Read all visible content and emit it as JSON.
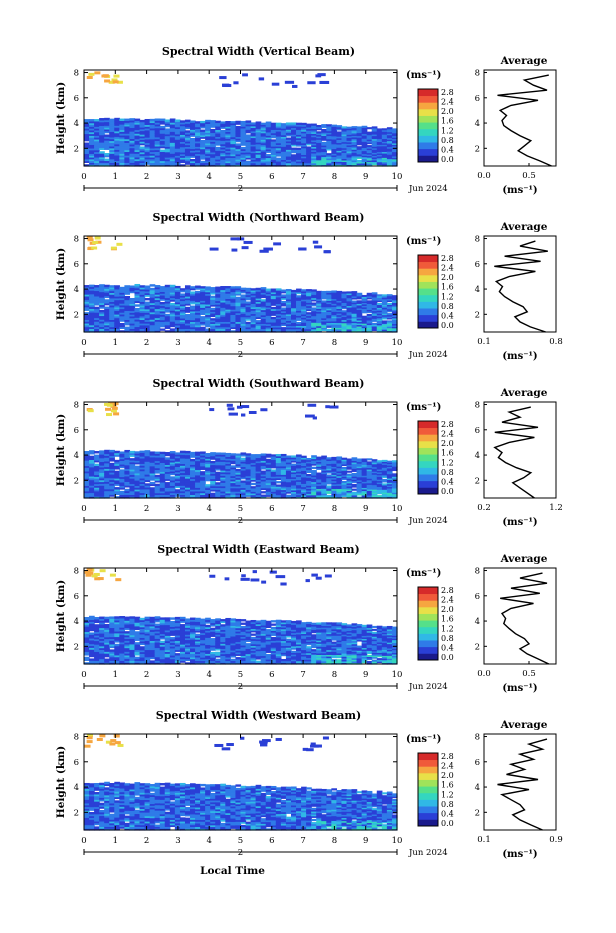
{
  "footer": {
    "xlabel": "Local Time"
  },
  "colorbar": {
    "unit": "(ms⁻¹)",
    "ticks": [
      "0.0",
      "0.4",
      "0.8",
      "1.2",
      "1.6",
      "2.0",
      "2.4",
      "2.8"
    ]
  },
  "colormap": [
    "#1a1a8c",
    "#2a3fd6",
    "#2f7be8",
    "#30b8e6",
    "#34d6c0",
    "#55e08a",
    "#a0e35a",
    "#e8e048",
    "#f6a640",
    "#f05a3a",
    "#d62a2a"
  ],
  "chart_data": [
    {
      "type": "heatmap",
      "title": "Spectral Width (Vertical Beam)",
      "ylabel": "Height (km)",
      "xlabel": "",
      "xlim": [
        0,
        10
      ],
      "ylim": [
        0.6,
        8.2
      ],
      "xticks": [
        "0",
        "1",
        "2",
        "3",
        "4",
        "5",
        "6",
        "7",
        "8",
        "9",
        "10"
      ],
      "yticks": [
        "2",
        "4",
        "6",
        "8"
      ],
      "date_day": "2",
      "date_label": "Jun 2024",
      "colorbar_range": [
        0.0,
        2.8
      ],
      "average": {
        "title": "Average",
        "xlabel": "(ms⁻¹)",
        "xticks": [
          "0.0",
          "0.5"
        ],
        "xlim": [
          0.0,
          0.8
        ],
        "height": [
          0.6,
          1.0,
          1.4,
          1.8,
          2.2,
          2.6,
          3.0,
          3.4,
          3.8,
          4.2,
          4.6,
          5.0,
          5.4,
          5.8,
          6.2,
          6.6,
          7.0,
          7.4,
          7.8
        ],
        "value": [
          0.75,
          0.62,
          0.48,
          0.38,
          0.45,
          0.52,
          0.4,
          0.3,
          0.22,
          0.2,
          0.25,
          0.18,
          0.3,
          0.6,
          0.15,
          0.7,
          0.55,
          0.45,
          0.72
        ]
      }
    },
    {
      "type": "heatmap",
      "title": "Spectral Width (Northward Beam)",
      "ylabel": "Height (km)",
      "xlabel": "",
      "xlim": [
        0,
        10
      ],
      "ylim": [
        0.6,
        8.2
      ],
      "xticks": [
        "0",
        "1",
        "2",
        "3",
        "4",
        "5",
        "6",
        "7",
        "8",
        "9",
        "10"
      ],
      "yticks": [
        "2",
        "4",
        "6",
        "8"
      ],
      "date_day": "2",
      "date_label": "Jun 2024",
      "colorbar_range": [
        0.0,
        2.8
      ],
      "average": {
        "title": "Average",
        "xlabel": "(ms⁻¹)",
        "xticks": [
          "0.1",
          "0.8"
        ],
        "xlim": [
          0.1,
          0.8
        ],
        "height": [
          0.6,
          1.0,
          1.4,
          1.8,
          2.2,
          2.6,
          3.0,
          3.4,
          3.8,
          4.2,
          4.6,
          5.0,
          5.4,
          5.8,
          6.2,
          6.6,
          7.0,
          7.4,
          7.8
        ],
        "value": [
          0.7,
          0.55,
          0.45,
          0.4,
          0.52,
          0.48,
          0.38,
          0.3,
          0.25,
          0.28,
          0.22,
          0.35,
          0.6,
          0.2,
          0.65,
          0.3,
          0.72,
          0.45,
          0.6
        ]
      }
    },
    {
      "type": "heatmap",
      "title": "Spectral Width (Southward Beam)",
      "ylabel": "Height (km)",
      "xlabel": "",
      "xlim": [
        0,
        10
      ],
      "ylim": [
        0.6,
        8.2
      ],
      "xticks": [
        "0",
        "1",
        "2",
        "3",
        "4",
        "5",
        "6",
        "7",
        "8",
        "9",
        "10"
      ],
      "yticks": [
        "2",
        "4",
        "6",
        "8"
      ],
      "date_day": "2",
      "date_label": "Jun 2024",
      "colorbar_range": [
        0.0,
        2.8
      ],
      "average": {
        "title": "Average",
        "xlabel": "(ms⁻¹)",
        "xticks": [
          "0.2",
          "1.2"
        ],
        "xlim": [
          0.2,
          1.2
        ],
        "height": [
          0.6,
          1.0,
          1.4,
          1.8,
          2.2,
          2.6,
          3.0,
          3.4,
          3.8,
          4.2,
          4.6,
          5.0,
          5.4,
          5.8,
          6.2,
          6.6,
          7.0,
          7.4,
          7.8
        ],
        "value": [
          0.9,
          0.8,
          0.7,
          0.6,
          0.75,
          0.85,
          0.65,
          0.5,
          0.4,
          0.45,
          0.35,
          0.55,
          0.9,
          0.35,
          0.95,
          0.45,
          0.7,
          0.55,
          0.85
        ]
      }
    },
    {
      "type": "heatmap",
      "title": "Spectral Width (Eastward Beam)",
      "ylabel": "Height (km)",
      "xlabel": "",
      "xlim": [
        0,
        10
      ],
      "ylim": [
        0.6,
        8.2
      ],
      "xticks": [
        "0",
        "1",
        "2",
        "3",
        "4",
        "5",
        "6",
        "7",
        "8",
        "9",
        "10"
      ],
      "yticks": [
        "2",
        "4",
        "6",
        "8"
      ],
      "date_day": "2",
      "date_label": "Jun 2024",
      "colorbar_range": [
        0.0,
        2.8
      ],
      "average": {
        "title": "Average",
        "xlabel": "(ms⁻¹)",
        "xticks": [
          "0.0",
          "0.5"
        ],
        "xlim": [
          0.0,
          0.8
        ],
        "height": [
          0.6,
          1.0,
          1.4,
          1.8,
          2.2,
          2.6,
          3.0,
          3.4,
          3.8,
          4.2,
          4.6,
          5.0,
          5.4,
          5.8,
          6.2,
          6.6,
          7.0,
          7.4,
          7.8
        ],
        "value": [
          0.72,
          0.6,
          0.48,
          0.4,
          0.5,
          0.45,
          0.35,
          0.28,
          0.22,
          0.24,
          0.2,
          0.3,
          0.55,
          0.18,
          0.62,
          0.3,
          0.7,
          0.4,
          0.65
        ]
      }
    },
    {
      "type": "heatmap",
      "title": "Spectral Width (Westward Beam)",
      "ylabel": "Height (km)",
      "xlabel": "Local Time",
      "xlim": [
        0,
        10
      ],
      "ylim": [
        0.6,
        8.2
      ],
      "xticks": [
        "0",
        "1",
        "2",
        "3",
        "4",
        "5",
        "6",
        "7",
        "8",
        "9",
        "10"
      ],
      "yticks": [
        "2",
        "4",
        "6",
        "8"
      ],
      "date_day": "2",
      "date_label": "Jun 2024",
      "colorbar_range": [
        0.0,
        2.8
      ],
      "average": {
        "title": "Average",
        "xlabel": "(ms⁻¹)",
        "xticks": [
          "0.1",
          "0.9"
        ],
        "xlim": [
          0.1,
          0.9
        ],
        "height": [
          0.6,
          1.0,
          1.4,
          1.8,
          2.2,
          2.6,
          3.0,
          3.4,
          3.8,
          4.2,
          4.6,
          5.0,
          5.4,
          5.8,
          6.2,
          6.6,
          7.0,
          7.4,
          7.8
        ],
        "value": [
          0.75,
          0.62,
          0.5,
          0.42,
          0.55,
          0.5,
          0.4,
          0.3,
          0.6,
          0.25,
          0.7,
          0.35,
          0.55,
          0.4,
          0.65,
          0.5,
          0.75,
          0.6,
          0.8
        ]
      }
    }
  ]
}
